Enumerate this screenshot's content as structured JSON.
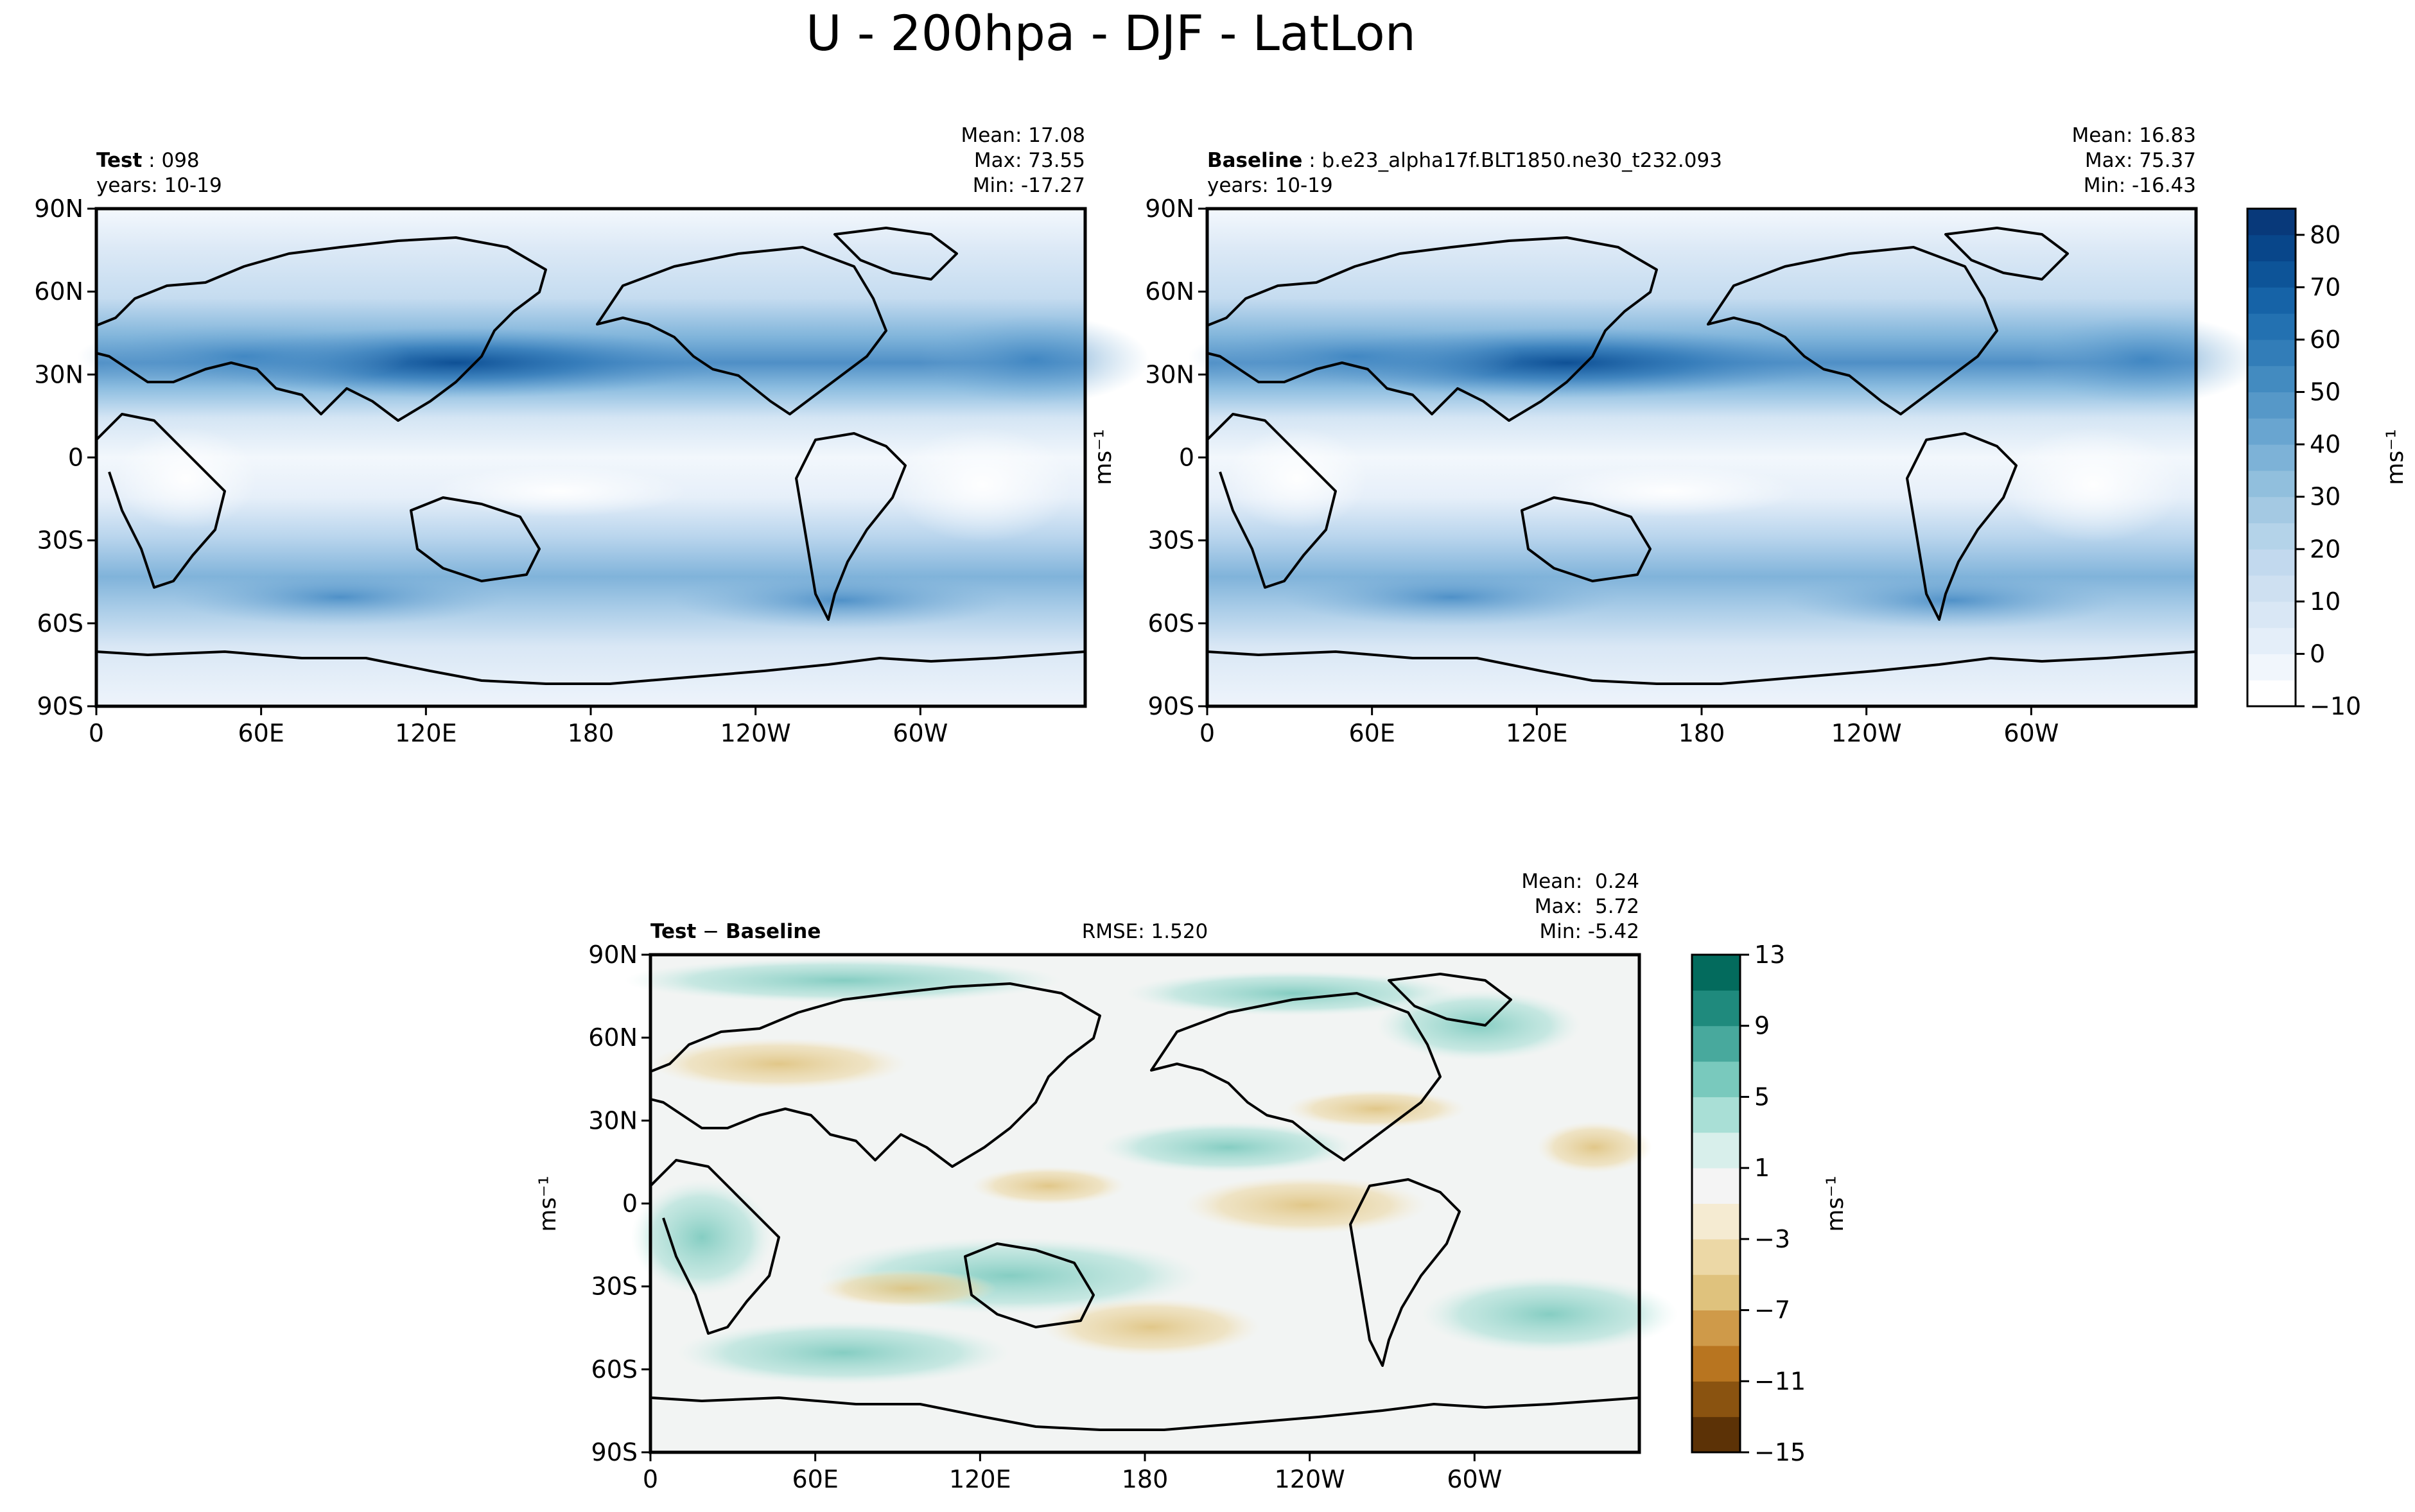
{
  "figure": {
    "suptitle": "U - 200hpa - DJF - LatLon"
  },
  "chart_data": [
    {
      "type": "heatmap",
      "panel": "test",
      "title_bold": "Test",
      "title_rest": " : 098",
      "years": "years: 10-19",
      "stats": {
        "mean": "Mean: 17.08",
        "max": "Max: 73.55",
        "min": "Min: -17.27"
      },
      "ylabel": "ms⁻¹",
      "xticks": [
        "0",
        "60E",
        "120E",
        "180",
        "120W",
        "60W"
      ],
      "yticks": [
        "90N",
        "60N",
        "30N",
        "0",
        "30S",
        "60S",
        "90S"
      ],
      "ylim": [
        -90,
        90
      ],
      "value_range": [
        -10,
        85
      ]
    },
    {
      "type": "heatmap",
      "panel": "baseline",
      "title_bold": "Baseline",
      "title_rest": " : b.e23_alpha17f.BLT1850.ne30_t232.093",
      "years": "years: 10-19",
      "stats": {
        "mean": "Mean: 16.83",
        "max": "Max: 75.37",
        "min": "Min: -16.43"
      },
      "xticks": [
        "0",
        "60E",
        "120E",
        "180",
        "120W",
        "60W"
      ],
      "yticks": [
        "90N",
        "60N",
        "30N",
        "0",
        "30S",
        "60S",
        "90S"
      ],
      "ylim": [
        -90,
        90
      ],
      "colorbar": {
        "label": "ms⁻¹",
        "ticks": [
          "80",
          "70",
          "60",
          "50",
          "40",
          "30",
          "20",
          "10",
          "0",
          "−10"
        ],
        "tick_values": [
          80,
          70,
          60,
          50,
          40,
          30,
          20,
          10,
          0,
          -10
        ],
        "range": [
          -10,
          85
        ],
        "colors": [
          "#ffffff",
          "#f1f6fc",
          "#e4eef9",
          "#d9e7f5",
          "#cee0f1",
          "#c2d9ee",
          "#b4d3e9",
          "#a4c9e3",
          "#91bfdd",
          "#7db2d7",
          "#69a5d0",
          "#5698c8",
          "#438bc0",
          "#327db8",
          "#2371b1",
          "#1663a7",
          "#0d5498",
          "#08468a",
          "#08397a"
        ]
      }
    },
    {
      "type": "heatmap",
      "panel": "difference",
      "title_a": "Test",
      "title_op": " − ",
      "title_b": "Baseline",
      "rmse": "RMSE: 1.520",
      "stats": {
        "mean": "Mean:  0.24",
        "max": "Max:  5.72",
        "min": "Min: -5.42"
      },
      "ylabel": "ms⁻¹",
      "xticks": [
        "0",
        "60E",
        "120E",
        "180",
        "120W",
        "60W"
      ],
      "yticks": [
        "90N",
        "60N",
        "30N",
        "0",
        "30S",
        "60S",
        "90S"
      ],
      "ylim": [
        -90,
        90
      ],
      "colorbar": {
        "label": "ms⁻¹",
        "ticks": [
          "13",
          "9",
          "5",
          "1",
          "−3",
          "−7",
          "−11",
          "−15"
        ],
        "tick_values": [
          13,
          9,
          5,
          1,
          -3,
          -7,
          -11,
          -15
        ],
        "levels": [
          -15,
          -13,
          -11,
          -9,
          -7,
          -5,
          -3,
          -1,
          1,
          3,
          5,
          7,
          9,
          11,
          13
        ],
        "colors": [
          "#5c3206",
          "#8a5310",
          "#b87520",
          "#cf9a49",
          "#dfc27d",
          "#ecd8a6",
          "#f5ebd2",
          "#f4f4f4",
          "#d8efeb",
          "#a9dfd6",
          "#79c9bd",
          "#48a99d",
          "#1f8a7d",
          "#036b5d"
        ]
      }
    }
  ]
}
